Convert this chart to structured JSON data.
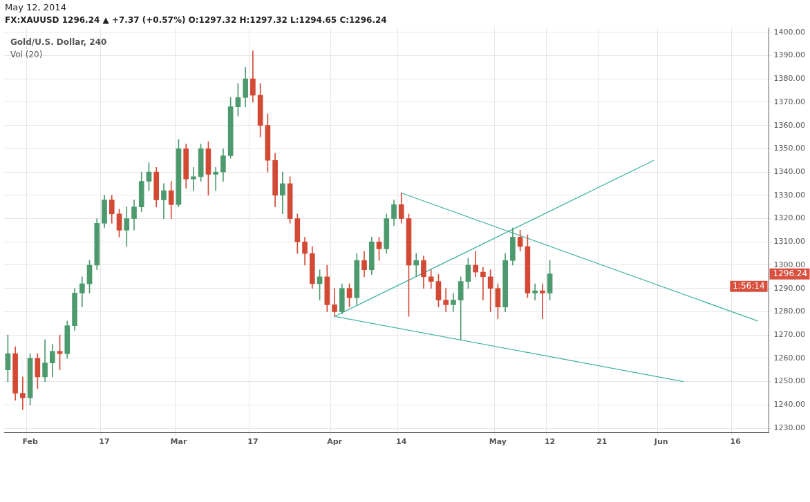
{
  "chart_data": {
    "type": "candlestick",
    "title": "May 12, 2014",
    "subtitle": "FX:XAUUSD 1296.24 ▲ +7.37 (+0.57%) O:1297.32 H:1297.32 L:1294.65 C:1296.24",
    "categories": [
      null,
      null,
      null,
      "Feb",
      null,
      null,
      null,
      null,
      null,
      null,
      null,
      null,
      null,
      "17",
      null,
      null,
      null,
      null,
      null,
      null,
      null,
      null,
      null,
      "Mar",
      null,
      null,
      null,
      null,
      null,
      null,
      null,
      null,
      null,
      "17",
      null,
      null,
      null,
      null,
      null,
      null,
      null,
      null,
      null,
      null,
      "Apr",
      null,
      null,
      null,
      null,
      null,
      null,
      null,
      null,
      "14",
      null,
      null,
      null,
      null,
      null,
      null,
      null,
      null,
      null,
      null,
      null,
      null,
      "May",
      null,
      null,
      null,
      null,
      null,
      null,
      "12",
      null,
      null,
      null,
      null,
      null,
      null,
      "21",
      null,
      null,
      null,
      null,
      null,
      null,
      null,
      "Jun",
      null,
      null,
      null,
      null,
      null,
      null,
      null,
      null,
      null,
      "16",
      null,
      null,
      null,
      null
    ],
    "ohlc": [
      [
        1255,
        1270,
        1250,
        1262
      ],
      [
        1262,
        1265,
        1242,
        1245
      ],
      [
        1245,
        1252,
        1238,
        1243
      ],
      [
        1243,
        1262,
        1240,
        1260
      ],
      [
        1260,
        1262,
        1247,
        1252
      ],
      [
        1252,
        1268,
        1250,
        1258
      ],
      [
        1258,
        1266,
        1252,
        1263
      ],
      [
        1263,
        1270,
        1255,
        1262
      ],
      [
        1262,
        1276,
        1260,
        1274
      ],
      [
        1274,
        1290,
        1272,
        1288
      ],
      [
        1288,
        1295,
        1282,
        1292
      ],
      [
        1292,
        1302,
        1288,
        1300
      ],
      [
        1300,
        1320,
        1298,
        1318
      ],
      [
        1318,
        1330,
        1316,
        1328
      ],
      [
        1328,
        1330,
        1318,
        1322
      ],
      [
        1322,
        1324,
        1312,
        1315
      ],
      [
        1315,
        1325,
        1308,
        1320
      ],
      [
        1320,
        1328,
        1315,
        1325
      ],
      [
        1325,
        1340,
        1323,
        1336
      ],
      [
        1336,
        1344,
        1332,
        1340
      ],
      [
        1340,
        1342,
        1325,
        1328
      ],
      [
        1328,
        1335,
        1320,
        1332
      ],
      [
        1332,
        1336,
        1320,
        1326
      ],
      [
        1326,
        1354,
        1325,
        1350
      ],
      [
        1350,
        1352,
        1333,
        1337
      ],
      [
        1337,
        1342,
        1332,
        1338
      ],
      [
        1338,
        1352,
        1336,
        1350
      ],
      [
        1350,
        1353,
        1330,
        1339
      ],
      [
        1339,
        1342,
        1332,
        1340
      ],
      [
        1340,
        1350,
        1336,
        1347
      ],
      [
        1347,
        1372,
        1346,
        1368
      ],
      [
        1368,
        1378,
        1364,
        1372
      ],
      [
        1372,
        1385,
        1368,
        1380
      ],
      [
        1380,
        1392,
        1370,
        1373
      ],
      [
        1373,
        1378,
        1355,
        1360
      ],
      [
        1360,
        1365,
        1340,
        1345
      ],
      [
        1345,
        1348,
        1325,
        1330
      ],
      [
        1330,
        1340,
        1322,
        1335
      ],
      [
        1335,
        1338,
        1318,
        1320
      ],
      [
        1320,
        1322,
        1305,
        1310
      ],
      [
        1310,
        1312,
        1300,
        1305
      ],
      [
        1305,
        1308,
        1290,
        1292
      ],
      [
        1292,
        1298,
        1285,
        1295
      ],
      [
        1295,
        1300,
        1280,
        1283
      ],
      [
        1283,
        1290,
        1278,
        1280
      ],
      [
        1280,
        1292,
        1279,
        1290
      ],
      [
        1290,
        1292,
        1282,
        1286
      ],
      [
        1286,
        1305,
        1283,
        1302
      ],
      [
        1302,
        1306,
        1295,
        1298
      ],
      [
        1298,
        1312,
        1296,
        1310
      ],
      [
        1310,
        1312,
        1302,
        1307
      ],
      [
        1307,
        1322,
        1305,
        1320
      ],
      [
        1320,
        1328,
        1317,
        1326
      ],
      [
        1326,
        1331,
        1318,
        1320
      ],
      [
        1320,
        1322,
        1278,
        1300
      ],
      [
        1300,
        1305,
        1295,
        1302
      ],
      [
        1302,
        1304,
        1290,
        1295
      ],
      [
        1295,
        1298,
        1290,
        1293
      ],
      [
        1293,
        1296,
        1282,
        1285
      ],
      [
        1285,
        1290,
        1280,
        1283
      ],
      [
        1283,
        1288,
        1280,
        1285
      ],
      [
        1285,
        1295,
        1268,
        1293
      ],
      [
        1293,
        1303,
        1290,
        1300
      ],
      [
        1300,
        1306,
        1295,
        1297
      ],
      [
        1297,
        1299,
        1285,
        1295
      ],
      [
        1295,
        1298,
        1280,
        1290
      ],
      [
        1290,
        1292,
        1277,
        1282
      ],
      [
        1282,
        1305,
        1280,
        1302
      ],
      [
        1302,
        1316,
        1300,
        1312
      ],
      [
        1312,
        1315,
        1306,
        1308
      ],
      [
        1308,
        1313,
        1286,
        1288
      ],
      [
        1288,
        1292,
        1285,
        1289
      ],
      [
        1289,
        1292,
        1277,
        1288
      ],
      [
        1288,
        1302,
        1285,
        1296.24
      ],
      null,
      null,
      null,
      null,
      null,
      null,
      null,
      null,
      null,
      null,
      null,
      null,
      null,
      null,
      null,
      null,
      null,
      null,
      null,
      null,
      null,
      null,
      null,
      null,
      null,
      null,
      null,
      null,
      null
    ],
    "colors": [
      "#4d9a6e",
      "#d24a35",
      "#d24a35",
      "#4d9a6e",
      "#d24a35",
      "#4d9a6e",
      "#4d9a6e",
      "#d24a35",
      "#4d9a6e",
      "#4d9a6e",
      "#4d9a6e",
      "#4d9a6e",
      "#4d9a6e",
      "#4d9a6e",
      "#d24a35",
      "#d24a35",
      "#4d9a6e",
      "#4d9a6e",
      "#4d9a6e",
      "#4d9a6e",
      "#d24a35",
      "#4d9a6e",
      "#d24a35",
      "#4d9a6e",
      "#d24a35",
      "#4d9a6e",
      "#4d9a6e",
      "#d24a35",
      "#4d9a6e",
      "#4d9a6e",
      "#4d9a6e",
      "#4d9a6e",
      "#4d9a6e",
      "#d24a35",
      "#d24a35",
      "#d24a35",
      "#d24a35",
      "#4d9a6e",
      "#d24a35",
      "#d24a35",
      "#d24a35",
      "#d24a35",
      "#4d9a6e",
      "#d24a35",
      "#d24a35",
      "#4d9a6e",
      "#d24a35",
      "#4d9a6e",
      "#d24a35",
      "#4d9a6e",
      "#d24a35",
      "#4d9a6e",
      "#4d9a6e",
      "#d24a35",
      "#d24a35",
      "#4d9a6e",
      "#d24a35",
      "#d24a35",
      "#d24a35",
      "#d24a35",
      "#4d9a6e",
      "#4d9a6e",
      "#4d9a6e",
      "#d24a35",
      "#d24a35",
      "#d24a35",
      "#d24a35",
      "#4d9a6e",
      "#4d9a6e",
      "#d24a35",
      "#d24a35",
      "#4d9a6e",
      "#d24a35",
      "#4d9a6e",
      null,
      null,
      null,
      null,
      null,
      null,
      null,
      null,
      null,
      null,
      null,
      null,
      null,
      null,
      null,
      null,
      null,
      null,
      null,
      null,
      null,
      null,
      null,
      null,
      null,
      null,
      null,
      null,
      null
    ],
    "series": [
      {
        "type": "line",
        "color": "#3bb3a0",
        "values": [
          null,
          null,
          null,
          null,
          null,
          null,
          null,
          null,
          null,
          null,
          null,
          null,
          null,
          null,
          null,
          null,
          null,
          null,
          null,
          null,
          null,
          null,
          null,
          null,
          null,
          null,
          null,
          null,
          null,
          null,
          null,
          null,
          null,
          null,
          null,
          null,
          null,
          null,
          null,
          null,
          null,
          null,
          null,
          null,
          1278,
          null,
          null,
          null,
          null,
          null,
          null,
          null,
          null,
          null,
          null,
          null,
          null,
          null,
          null,
          null,
          null,
          null,
          null,
          null,
          null,
          null,
          null,
          null,
          null,
          null,
          null,
          null,
          null,
          null,
          null,
          null,
          null,
          null,
          null,
          null,
          null,
          null,
          null,
          null,
          null,
          null,
          null,
          1345,
          null,
          null,
          null,
          null,
          null,
          null,
          null,
          null,
          null,
          null,
          null,
          null,
          null,
          null,
          null
        ]
      },
      {
        "type": "line",
        "color": "#3bb3a0",
        "values": [
          null,
          null,
          null,
          null,
          null,
          null,
          null,
          null,
          null,
          null,
          null,
          null,
          null,
          null,
          null,
          null,
          null,
          null,
          null,
          null,
          null,
          null,
          null,
          null,
          null,
          null,
          null,
          null,
          null,
          null,
          null,
          null,
          null,
          null,
          null,
          null,
          null,
          null,
          null,
          null,
          null,
          null,
          null,
          null,
          null,
          null,
          null,
          null,
          null,
          null,
          null,
          null,
          null,
          1331,
          null,
          null,
          null,
          null,
          null,
          null,
          null,
          null,
          null,
          null,
          null,
          null,
          null,
          null,
          null,
          null,
          null,
          null,
          null,
          null,
          null,
          null,
          null,
          null,
          null,
          null,
          null,
          null,
          null,
          null,
          null,
          null,
          null,
          null,
          null,
          null,
          null,
          null,
          null,
          null,
          null,
          null,
          null,
          null,
          null,
          null,
          null,
          1276,
          null
        ]
      },
      {
        "type": "line",
        "color": "#3bb3a0",
        "values": [
          null,
          null,
          null,
          null,
          null,
          null,
          null,
          null,
          null,
          null,
          null,
          null,
          null,
          null,
          null,
          null,
          null,
          null,
          null,
          null,
          null,
          null,
          null,
          null,
          null,
          null,
          null,
          null,
          null,
          null,
          null,
          null,
          null,
          null,
          null,
          null,
          null,
          null,
          null,
          null,
          null,
          null,
          null,
          null,
          1278,
          null,
          null,
          null,
          null,
          null,
          null,
          null,
          null,
          null,
          null,
          null,
          null,
          null,
          null,
          null,
          null,
          null,
          null,
          null,
          null,
          null,
          null,
          null,
          null,
          null,
          null,
          null,
          null,
          null,
          null,
          null,
          null,
          null,
          null,
          null,
          null,
          null,
          null,
          null,
          null,
          null,
          null,
          null,
          null,
          null,
          null,
          1250,
          null,
          null,
          null,
          null,
          null,
          null,
          null,
          null,
          null,
          null,
          null
        ]
      }
    ],
    "ylim": [
      1228,
      1402
    ],
    "yticks": [
      {
        "value": 1230,
        "label": "1230.00"
      },
      {
        "value": 1240,
        "label": "1240.00"
      },
      {
        "value": 1250,
        "label": "1250.00"
      },
      {
        "value": 1260,
        "label": "1260.00"
      },
      {
        "value": 1270,
        "label": "1270.00"
      },
      {
        "value": 1280,
        "label": "1280.00"
      },
      {
        "value": 1290,
        "label": "1290.00"
      },
      {
        "value": 1300,
        "label": "1300.00"
      },
      {
        "value": 1310,
        "label": "1310.00"
      },
      {
        "value": 1320,
        "label": "1320.00"
      },
      {
        "value": 1330,
        "label": "1330.00"
      },
      {
        "value": 1340,
        "label": "1340.00"
      },
      {
        "value": 1350,
        "label": "1350.00"
      },
      {
        "value": 1360,
        "label": "1360.00"
      },
      {
        "value": 1370,
        "label": "1370.00"
      },
      {
        "value": 1380,
        "label": "1380.00"
      },
      {
        "value": 1390,
        "label": "1390.00"
      },
      {
        "value": 1400,
        "label": "1400.00"
      }
    ],
    "grid": true,
    "legend": false,
    "marker": "none",
    "annotations": [
      "Gold/U.S. Dollar, 240",
      "Vol (20)",
      "1296.24",
      "1:56:14"
    ]
  }
}
